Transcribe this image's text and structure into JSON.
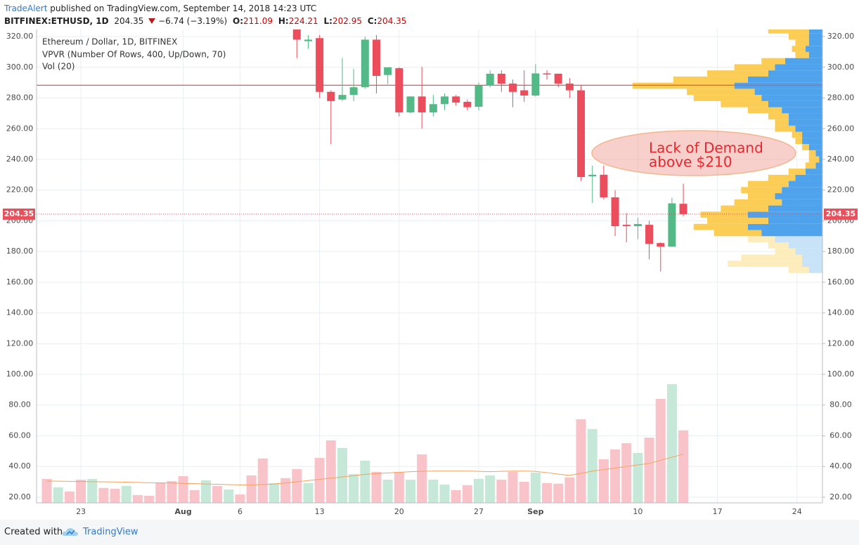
{
  "header": {
    "author": "TradeAlert",
    "published": "published on TradingView.com, September 14, 2018 14:23 UTC",
    "symbol": "BITFINEX:ETHUSD, 1D",
    "price": "204.35",
    "change": "−6.74 (−3.19%)",
    "o_label": "O:",
    "o": "211.09",
    "h_label": "H:",
    "h": "224.21",
    "l_label": "L:",
    "l": "202.95",
    "c_label": "C:",
    "c": "204.35"
  },
  "footer": {
    "created": "Created with",
    "brand": "TradingView"
  },
  "chart_data": {
    "type": "candlestick",
    "title": "Ethereum / Dollar, 1D, BITFINEX",
    "indicators": [
      "VPVR (Number Of Rows, 400, Up/Down, 70)",
      "Vol (20)"
    ],
    "categories": [
      null,
      null,
      null,
      "23",
      null,
      null,
      null,
      null,
      null,
      null,
      null,
      null,
      "Aug",
      null,
      null,
      null,
      null,
      "6",
      null,
      null,
      null,
      null,
      null,
      null,
      "13",
      null,
      null,
      null,
      null,
      null,
      null,
      "20",
      null,
      null,
      null,
      null,
      null,
      null,
      "27",
      null,
      null,
      null,
      null,
      "Sep",
      null,
      null,
      null,
      null,
      null,
      null,
      null,
      null,
      "10",
      null,
      null,
      null,
      null,
      null,
      null,
      "17",
      null,
      null,
      null,
      null,
      null,
      null,
      "24",
      null,
      null,
      null
    ],
    "open": [
      null,
      null,
      null,
      null,
      null,
      null,
      null,
      null,
      null,
      null,
      null,
      null,
      null,
      null,
      null,
      null,
      null,
      null,
      null,
      null,
      null,
      null,
      325,
      317,
      319,
      284,
      279,
      282,
      287,
      318,
      295,
      299.4,
      270.6,
      281,
      270.6,
      276,
      281,
      277.5,
      274.3,
      288,
      295.8,
      289.4,
      285,
      281.6,
      296,
      295.8,
      289.4,
      285,
      229,
      230,
      215.3,
      197.4,
      196.5,
      197.4,
      185.5,
      183.2,
      211.09,
      null,
      null,
      null,
      null,
      null,
      null,
      null,
      null,
      null,
      null,
      null,
      null,
      null
    ],
    "high": [
      null,
      null,
      null,
      null,
      null,
      null,
      null,
      null,
      null,
      null,
      null,
      null,
      null,
      null,
      null,
      null,
      null,
      null,
      null,
      null,
      null,
      null,
      330,
      321,
      321,
      285,
      306,
      299,
      320,
      321,
      300,
      300,
      281,
      300.3,
      282,
      283,
      282,
      279,
      290,
      298,
      298,
      292,
      298,
      302,
      298,
      296,
      293,
      288,
      236,
      236,
      220,
      205,
      202,
      200,
      186,
      215,
      224.21,
      null,
      null,
      null,
      null,
      null,
      null,
      null,
      null,
      null,
      null,
      null,
      null,
      null
    ],
    "low": [
      null,
      null,
      null,
      null,
      null,
      null,
      null,
      null,
      null,
      null,
      null,
      null,
      null,
      null,
      null,
      null,
      null,
      null,
      null,
      null,
      null,
      null,
      306,
      312,
      280,
      250,
      278,
      278,
      286,
      283,
      289,
      268,
      270,
      260,
      268,
      272,
      275,
      272,
      272,
      287,
      284,
      274,
      277.5,
      281,
      292,
      287,
      280,
      226,
      211.6,
      214,
      190,
      186,
      188,
      175,
      167,
      183,
      202.95,
      null,
      null,
      null,
      null,
      null,
      null,
      null,
      null,
      null,
      null,
      null,
      null,
      null
    ],
    "close": [
      null,
      null,
      null,
      null,
      null,
      null,
      null,
      null,
      null,
      null,
      null,
      null,
      null,
      null,
      null,
      null,
      null,
      null,
      null,
      null,
      null,
      null,
      318,
      318,
      284,
      278,
      282,
      287,
      318,
      294.4,
      300,
      270.6,
      281,
      270.6,
      276,
      281,
      277,
      274,
      288,
      295.8,
      289.4,
      284,
      281.6,
      296,
      295.5,
      289.4,
      285,
      228.5,
      230,
      215.3,
      196.5,
      196.5,
      197.9,
      185,
      183.2,
      211.4,
      204.35,
      null,
      null,
      null,
      null,
      null,
      null,
      null,
      null,
      null,
      null,
      null,
      null,
      null
    ],
    "up_color": "#53b987",
    "down_color": "#eb4d5c",
    "volume": [
      31.9,
      26.4,
      23.7,
      31.4,
      31.9,
      26,
      25.5,
      27.3,
      21.4,
      20.9,
      29.6,
      30.5,
      33.7,
      24.6,
      31,
      27.3,
      25,
      21.8,
      34.2,
      45.2,
      29.2,
      32.4,
      38.3,
      29.2,
      45.6,
      57,
      52,
      35,
      43.8,
      36.5,
      31.4,
      36.5,
      31.4,
      47.9,
      31.4,
      28.2,
      24.6,
      27.8,
      31.9,
      34.2,
      31.4,
      36.5,
      30,
      36,
      29.2,
      28.8,
      32.9,
      70.8,
      64.4,
      44.7,
      51.1,
      55.2,
      48.8,
      58.8,
      84,
      93.6,
      63.5,
      null,
      null,
      null,
      null,
      null,
      null,
      null,
      null,
      null,
      null,
      null,
      null,
      null
    ],
    "volume_direction": [
      "down",
      "up",
      "down",
      "down",
      "up",
      "down",
      "down",
      "up",
      "down",
      "down",
      "down",
      "down",
      "down",
      "down",
      "up",
      "down",
      "up",
      "down",
      "down",
      "down",
      "up",
      "down",
      "down",
      "up",
      "down",
      "down",
      "up",
      "up",
      "up",
      "down",
      "up",
      "down",
      "up",
      "down",
      "up",
      "up",
      "down",
      "down",
      "up",
      "up",
      "down",
      "down",
      "down",
      "up",
      "down",
      "down",
      "down",
      "down",
      "up",
      "down",
      "down",
      "down",
      "up",
      "down",
      "down",
      "up",
      "down",
      null,
      null,
      null,
      null,
      null,
      null,
      null,
      null,
      null,
      null,
      null,
      null,
      null
    ],
    "volume_up_color": "#c6e8d8",
    "volume_down_color": "#f8c4c9",
    "ma": [
      30.5,
      30.4,
      30.3,
      30.2,
      30.1,
      30,
      29.9,
      29.8,
      29.6,
      29.4,
      29.3,
      29.2,
      29,
      28.8,
      28.6,
      28.4,
      28.2,
      28,
      28,
      28.2,
      28.6,
      29.2,
      30,
      30.8,
      31.6,
      32.4,
      33.2,
      34,
      34.8,
      35.4,
      35.8,
      36.2,
      36.6,
      36.8,
      37,
      37,
      37,
      37,
      36.8,
      36.6,
      36.8,
      37,
      37,
      36.8,
      36,
      35,
      34.2,
      35.5,
      37,
      38,
      39,
      40,
      41,
      42,
      44,
      46,
      48,
      null,
      null,
      null,
      null,
      null,
      null,
      null,
      null,
      null,
      null,
      null,
      null,
      null
    ],
    "ma_color": "#f5a15a",
    "ylim": [
      16.3,
      323.7
    ],
    "yticks": [
      {
        "value": 20,
        "label": "20.00"
      },
      {
        "value": 40,
        "label": "40.00"
      },
      {
        "value": 60,
        "label": "60.00"
      },
      {
        "value": 80,
        "label": "80.00"
      },
      {
        "value": 100,
        "label": "100.00"
      },
      {
        "value": 120,
        "label": "120.00"
      },
      {
        "value": 140,
        "label": "140.00"
      },
      {
        "value": 160,
        "label": "160.00"
      },
      {
        "value": 180,
        "label": "180.00"
      },
      {
        "value": 200,
        "label": "200.00"
      },
      {
        "value": 220,
        "label": "220.00"
      },
      {
        "value": 240,
        "label": "240.00"
      },
      {
        "value": 260,
        "label": "260.00"
      },
      {
        "value": 280,
        "label": "280.00"
      },
      {
        "value": 300,
        "label": "300.00"
      },
      {
        "value": 320,
        "label": "320.00"
      }
    ],
    "grid": true,
    "level": 288.3,
    "level_color": "#ef5350",
    "annotation": [
      "Lack of Demand",
      "above $210"
    ],
    "profile": {
      "bins": [
        166,
        170,
        174,
        178,
        182,
        186,
        190,
        194,
        198,
        202,
        206,
        210,
        214,
        218,
        222,
        226,
        230,
        234,
        238,
        242,
        246,
        250,
        254,
        258,
        262,
        266,
        270,
        274,
        278,
        282,
        286,
        290,
        294,
        298,
        302,
        306,
        310,
        314,
        318,
        322,
        326
      ],
      "up": [
        20,
        30,
        30,
        40,
        50,
        70,
        90,
        110,
        80,
        110,
        80,
        60,
        70,
        60,
        50,
        40,
        25,
        10,
        5,
        10,
        20,
        30,
        30,
        40,
        50,
        50,
        60,
        80,
        90,
        100,
        130,
        110,
        80,
        70,
        55,
        20,
        25,
        20,
        20,
        20
      ],
      "down": [
        30,
        110,
        90,
        30,
        30,
        40,
        70,
        80,
        90,
        70,
        70,
        70,
        40,
        60,
        60,
        40,
        25,
        15,
        15,
        10,
        10,
        10,
        15,
        30,
        20,
        30,
        50,
        70,
        100,
        100,
        150,
        110,
        90,
        60,
        35,
        20,
        20,
        20,
        30,
        60
      ],
      "value_area_low": 190,
      "up_color": "#4ea3ec",
      "down_color": "#fccd55",
      "up_color_outside": "#c8e2f8",
      "down_color_outside": "#fdecbc"
    }
  }
}
